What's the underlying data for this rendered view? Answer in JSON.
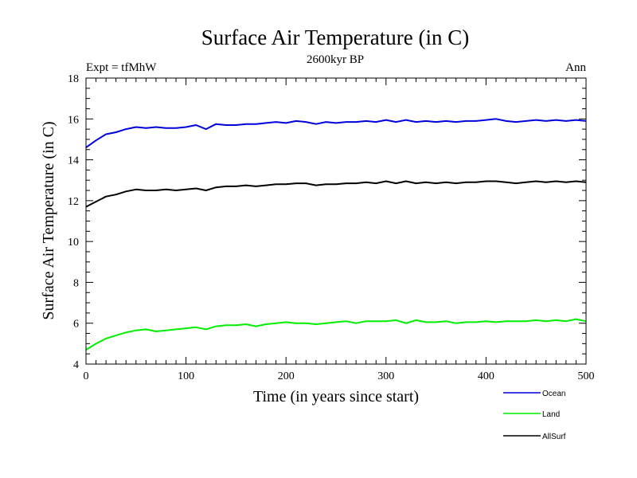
{
  "chart_data": {
    "type": "line",
    "title": "Surface Air Temperature (in C)",
    "subtitle": "2600kyr BP",
    "left_label": "Expt = tfMhW",
    "right_label": "Ann",
    "xlabel": "Time (in years since start)",
    "ylabel": "Surface Air Temperature (in C)",
    "xlim": [
      0,
      500
    ],
    "ylim": [
      4,
      18
    ],
    "x_ticks": [
      0,
      100,
      200,
      300,
      400,
      500
    ],
    "y_ticks": [
      4,
      6,
      8,
      10,
      12,
      14,
      16,
      18
    ],
    "legend_position": "bottom-right-outside",
    "x": [
      0,
      10,
      20,
      30,
      40,
      50,
      60,
      70,
      80,
      90,
      100,
      110,
      120,
      130,
      140,
      150,
      160,
      170,
      180,
      190,
      200,
      210,
      220,
      230,
      240,
      250,
      260,
      270,
      280,
      290,
      300,
      310,
      320,
      330,
      340,
      350,
      360,
      370,
      380,
      390,
      400,
      410,
      420,
      430,
      440,
      450,
      460,
      470,
      480,
      490,
      500
    ],
    "series": [
      {
        "name": "Ocean",
        "color": "#0000dd",
        "values": [
          14.6,
          14.95,
          15.25,
          15.35,
          15.5,
          15.6,
          15.55,
          15.6,
          15.55,
          15.55,
          15.6,
          15.7,
          15.5,
          15.75,
          15.7,
          15.7,
          15.75,
          15.75,
          15.8,
          15.85,
          15.8,
          15.9,
          15.85,
          15.75,
          15.85,
          15.8,
          15.85,
          15.85,
          15.9,
          15.85,
          15.95,
          15.85,
          15.95,
          15.85,
          15.9,
          15.85,
          15.9,
          15.85,
          15.9,
          15.9,
          15.95,
          16.0,
          15.9,
          15.85,
          15.9,
          15.95,
          15.9,
          15.95,
          15.9,
          15.95,
          15.9
        ]
      },
      {
        "name": "Land",
        "color": "#00ee00",
        "values": [
          4.7,
          5.0,
          5.25,
          5.4,
          5.55,
          5.65,
          5.7,
          5.6,
          5.65,
          5.7,
          5.75,
          5.8,
          5.7,
          5.85,
          5.9,
          5.9,
          5.95,
          5.85,
          5.95,
          6.0,
          6.05,
          6.0,
          6.0,
          5.95,
          6.0,
          6.05,
          6.1,
          6.0,
          6.1,
          6.1,
          6.1,
          6.15,
          6.0,
          6.15,
          6.05,
          6.05,
          6.1,
          6.0,
          6.05,
          6.05,
          6.1,
          6.05,
          6.1,
          6.1,
          6.1,
          6.15,
          6.1,
          6.15,
          6.1,
          6.2,
          6.1
        ]
      },
      {
        "name": "AllSurf",
        "color": "#000000",
        "values": [
          11.7,
          11.95,
          12.2,
          12.3,
          12.45,
          12.55,
          12.5,
          12.5,
          12.55,
          12.5,
          12.55,
          12.6,
          12.5,
          12.65,
          12.7,
          12.7,
          12.75,
          12.7,
          12.75,
          12.8,
          12.8,
          12.85,
          12.85,
          12.75,
          12.8,
          12.8,
          12.85,
          12.85,
          12.9,
          12.85,
          12.95,
          12.85,
          12.95,
          12.85,
          12.9,
          12.85,
          12.9,
          12.85,
          12.9,
          12.9,
          12.95,
          12.95,
          12.9,
          12.85,
          12.9,
          12.95,
          12.9,
          12.95,
          12.9,
          12.95,
          12.9
        ]
      }
    ]
  }
}
